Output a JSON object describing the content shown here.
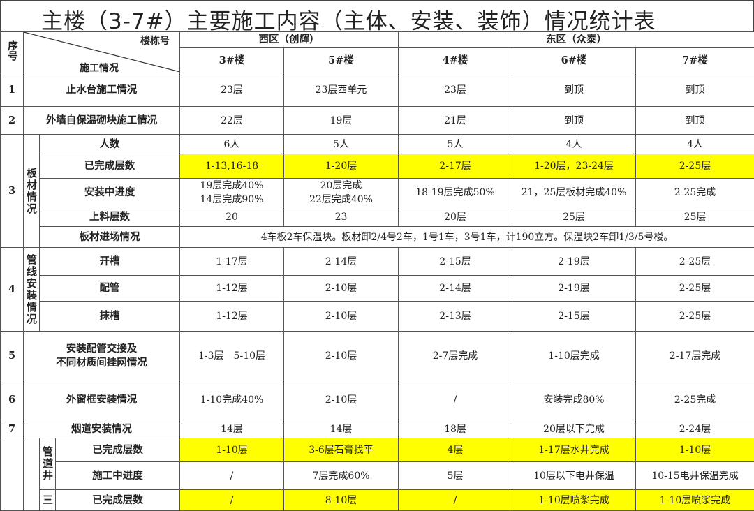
{
  "title": "主楼（3-7#）主要施工内容（主体、安装、装饰）情况统计表",
  "header": {
    "seq": "序号",
    "building_label": "楼栋号",
    "work_label": "施工情况",
    "west": "西区（创辉）",
    "east": "东区（众泰）",
    "buildings": [
      "3#楼",
      "5#楼",
      "4#楼",
      "6#楼",
      "7#楼"
    ]
  },
  "rows": {
    "r1": {
      "seq": "1",
      "item": "止水台施工情况",
      "values": [
        "23层",
        "23层西单元",
        "23层",
        "到顶",
        "到顶"
      ]
    },
    "r2": {
      "seq": "2",
      "item": "外墙自保温砌块施工情况",
      "values": [
        "22层",
        "19层",
        "21层",
        "到顶",
        "到顶"
      ]
    },
    "r3": {
      "seq": "3",
      "group": "板材情况",
      "people": {
        "item": "人数",
        "values": [
          "6人",
          "5人",
          "5人",
          "4人",
          "4人"
        ]
      },
      "done": {
        "item": "已完成层数",
        "values": [
          "1-13,16-18",
          "1-20层",
          "2-17层",
          "1-20层，23-24层",
          "2-25层"
        ]
      },
      "progress": {
        "item": "安装中进度",
        "values": [
          [
            "19层完成40%",
            "14层完成90%"
          ],
          [
            "20层完成",
            "22层完成40%"
          ],
          "18-19层完成50%",
          "21，25层板材完成40%",
          "2-25完成"
        ]
      },
      "loading": {
        "item": "上料层数",
        "values": [
          "20",
          "23",
          "20层",
          "25层",
          "25层"
        ]
      },
      "entry": {
        "item": "板材进场情况",
        "value": "4车板2车保温块。板材卸2/4号2车，1号1车，3号1车，计190立方。保温块2车卸1/3/5号楼。"
      }
    },
    "r4": {
      "seq": "4",
      "group": "管线安装情况",
      "slot": {
        "item": "开槽",
        "values": [
          "1-17层",
          "2-14层",
          "2-15层",
          "2-19层",
          "2-25层"
        ]
      },
      "pipe": {
        "item": "配管",
        "values": [
          "1-12层",
          "2-10层",
          "2-14层",
          "2-19层",
          "2-25层"
        ]
      },
      "plaster": {
        "item": "抹槽",
        "values": [
          "1-12层",
          "2-10层",
          "2-13层",
          "2-15层",
          "2-25层"
        ]
      }
    },
    "r5": {
      "seq": "5",
      "item": [
        "安装配管交接及",
        "不同材质间挂网情况"
      ],
      "values": [
        "1-3层　5-10层",
        "2-10层",
        "2-7层完成",
        "1-10层完成",
        "2-17层完成"
      ]
    },
    "r6": {
      "seq": "6",
      "item": "外窗框安装情况",
      "values": [
        "1-10完成40%",
        "2-10层",
        "/",
        "安装完成80%",
        "2-25完成"
      ]
    },
    "r7": {
      "seq": "7",
      "item": "烟道安装情况",
      "values": [
        "14层",
        "14层",
        "18层",
        "20层以下完成",
        "2-24层"
      ]
    },
    "r8": {
      "group1": "管道井",
      "group2": "三",
      "done": {
        "item": "已完成层数",
        "values": [
          "1-10层",
          "3-6层石膏找平",
          "4层",
          "1-17层水井完成",
          "1-10层"
        ]
      },
      "progress": {
        "item": "施工中进度",
        "values": [
          "/",
          "7层完成60%",
          "5层",
          "10层以下电井保温",
          "10-15电井保温完成"
        ]
      },
      "done2": {
        "item": "已完成层数",
        "values": [
          "/",
          "8-10层",
          "/",
          "1-10层喷浆完成",
          "1-10层喷浆完成"
        ]
      }
    }
  },
  "colors": {
    "highlight": "#ffff00",
    "border": "#555555"
  }
}
